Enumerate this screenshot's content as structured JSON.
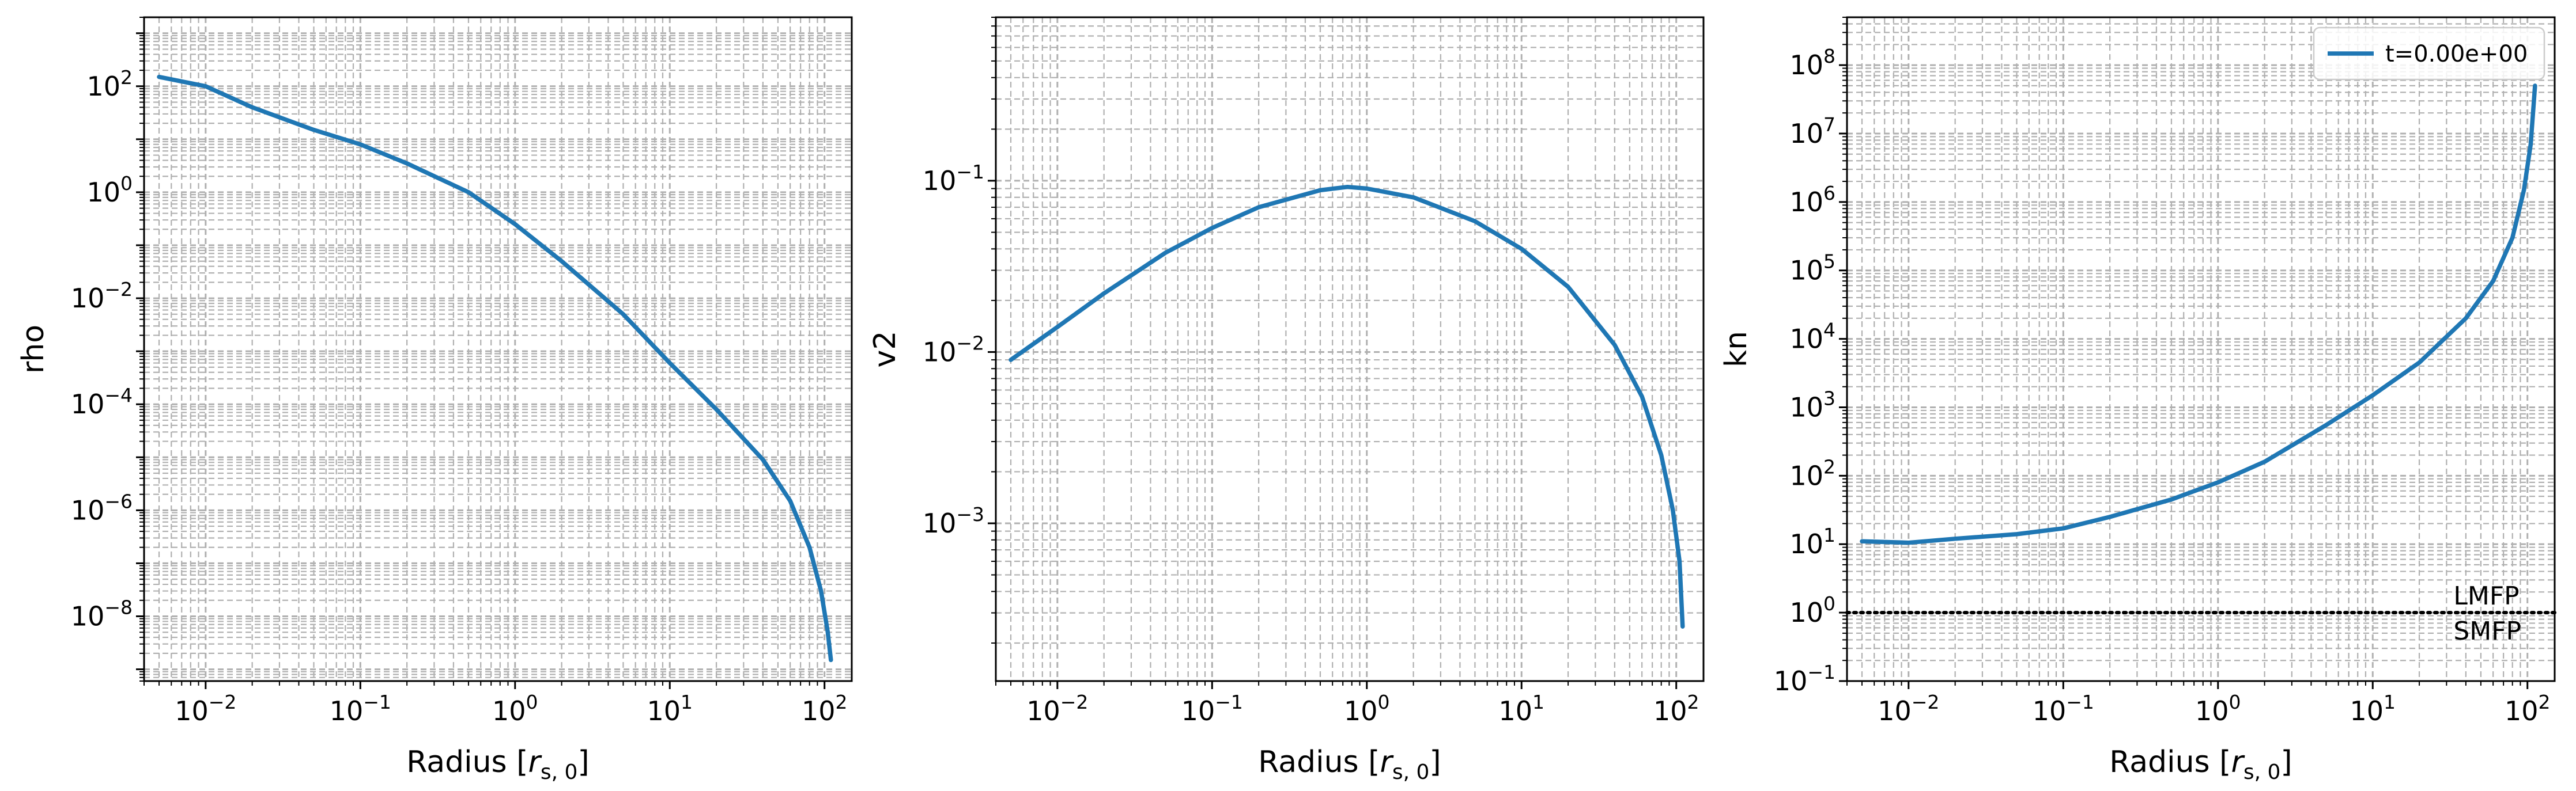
{
  "figure": {
    "background": "#ffffff",
    "line_color": "#1f77b4",
    "grid_color": "#b0b0b0"
  },
  "chart_data": [
    {
      "type": "line",
      "xlabel": "Radius [r_{s,0}]",
      "ylabel": "rho",
      "xscale": "log",
      "yscale": "log",
      "xlim": [
        0.004,
        150
      ],
      "ylim": [
        6e-10,
        2000
      ],
      "x_ticks": [
        {
          "base": "10",
          "exp": "−2",
          "v": 0.01
        },
        {
          "base": "10",
          "exp": "−1",
          "v": 0.1
        },
        {
          "base": "10",
          "exp": "0",
          "v": 1
        },
        {
          "base": "10",
          "exp": "1",
          "v": 10
        },
        {
          "base": "10",
          "exp": "2",
          "v": 100
        }
      ],
      "y_ticks": [
        {
          "base": "10",
          "exp": "2",
          "v": 100
        },
        {
          "base": "10",
          "exp": "0",
          "v": 1
        },
        {
          "base": "10",
          "exp": "−2",
          "v": 0.01
        },
        {
          "base": "10",
          "exp": "−4",
          "v": 0.0001
        },
        {
          "base": "10",
          "exp": "−6",
          "v": 1e-06
        },
        {
          "base": "10",
          "exp": "−8",
          "v": 1e-08
        }
      ],
      "grid": true,
      "series": [
        {
          "x": [
            0.005,
            0.01,
            0.02,
            0.05,
            0.1,
            0.2,
            0.5,
            1,
            2,
            5,
            10,
            20,
            40,
            60,
            80,
            95,
            105,
            110
          ],
          "y": [
            150,
            100,
            40,
            15,
            8,
            3.5,
            1.0,
            0.25,
            0.05,
            0.005,
            0.0006,
            8e-05,
            9e-06,
            1.5e-06,
            2e-07,
            3e-08,
            5e-09,
            1.5e-09
          ]
        }
      ]
    },
    {
      "type": "line",
      "xlabel": "Radius [r_{s,0}]",
      "ylabel": "v2",
      "xscale": "log",
      "yscale": "log",
      "xlim": [
        0.004,
        150
      ],
      "ylim": [
        0.00012,
        0.9
      ],
      "x_ticks": [
        {
          "base": "10",
          "exp": "−2",
          "v": 0.01
        },
        {
          "base": "10",
          "exp": "−1",
          "v": 0.1
        },
        {
          "base": "10",
          "exp": "0",
          "v": 1
        },
        {
          "base": "10",
          "exp": "1",
          "v": 10
        },
        {
          "base": "10",
          "exp": "2",
          "v": 100
        }
      ],
      "y_ticks": [
        {
          "base": "10",
          "exp": "−1",
          "v": 0.1
        },
        {
          "base": "10",
          "exp": "−2",
          "v": 0.01
        },
        {
          "base": "10",
          "exp": "−3",
          "v": 0.001
        }
      ],
      "grid": true,
      "series": [
        {
          "x": [
            0.005,
            0.01,
            0.02,
            0.05,
            0.1,
            0.2,
            0.5,
            0.75,
            1,
            2,
            5,
            10,
            20,
            40,
            60,
            80,
            95,
            105,
            110
          ],
          "y": [
            0.009,
            0.014,
            0.022,
            0.038,
            0.053,
            0.07,
            0.088,
            0.092,
            0.09,
            0.08,
            0.058,
            0.04,
            0.024,
            0.011,
            0.0055,
            0.0025,
            0.0012,
            0.0006,
            0.00025
          ]
        }
      ]
    },
    {
      "type": "line",
      "xlabel": "Radius [r_{s,0}]",
      "ylabel": "kn",
      "xscale": "log",
      "yscale": "log",
      "xlim": [
        0.004,
        150
      ],
      "ylim": [
        0.1,
        500000000.0
      ],
      "x_ticks": [
        {
          "base": "10",
          "exp": "−2",
          "v": 0.01
        },
        {
          "base": "10",
          "exp": "−1",
          "v": 0.1
        },
        {
          "base": "10",
          "exp": "0",
          "v": 1
        },
        {
          "base": "10",
          "exp": "1",
          "v": 10
        },
        {
          "base": "10",
          "exp": "2",
          "v": 100
        }
      ],
      "y_ticks": [
        {
          "base": "10",
          "exp": "8",
          "v": 100000000.0
        },
        {
          "base": "10",
          "exp": "7",
          "v": 10000000.0
        },
        {
          "base": "10",
          "exp": "6",
          "v": 1000000.0
        },
        {
          "base": "10",
          "exp": "5",
          "v": 100000.0
        },
        {
          "base": "10",
          "exp": "4",
          "v": 10000.0
        },
        {
          "base": "10",
          "exp": "3",
          "v": 1000.0
        },
        {
          "base": "10",
          "exp": "2",
          "v": 100
        },
        {
          "base": "10",
          "exp": "1",
          "v": 10
        },
        {
          "base": "10",
          "exp": "0",
          "v": 1
        },
        {
          "base": "10",
          "exp": "−1",
          "v": 0.1
        }
      ],
      "grid": true,
      "legend": {
        "placement": "upper right",
        "label": "t=0.00e+00"
      },
      "hline": {
        "y": 1,
        "style": "dotted",
        "color": "#000000"
      },
      "annotations": [
        {
          "text": "LMFP",
          "x": 30,
          "y": 1.8
        },
        {
          "text": "SMFP",
          "x": 30,
          "y": 0.55
        }
      ],
      "series": [
        {
          "x": [
            0.005,
            0.01,
            0.02,
            0.05,
            0.1,
            0.2,
            0.5,
            1,
            2,
            5,
            10,
            20,
            40,
            60,
            80,
            95,
            105,
            112
          ],
          "y": [
            11,
            10.5,
            12,
            14,
            17,
            25,
            45,
            80,
            160,
            550,
            1500,
            4500,
            20000,
            70000,
            300000,
            1500000,
            7000000,
            50000000
          ]
        }
      ]
    }
  ]
}
